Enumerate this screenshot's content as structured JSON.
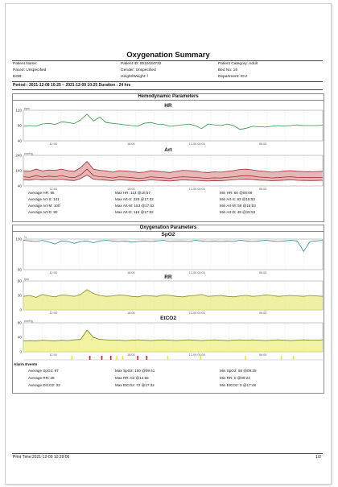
{
  "report": {
    "title": "Oxygenation Summary",
    "patient_name": "Patient Name:",
    "patient_id": "Patient ID: 0010434732",
    "patient_category": "Patient Category: Adult",
    "paced": "Paced: Unspecified",
    "gender": "Gender: Unspecified",
    "bed_no": "Bed No: 16",
    "dob": "DOB:",
    "height_weight": "Height/Weight: /",
    "department": "Department: ICU",
    "period": "Period : 2021-12-08  10:25 ~ 2021-12-09  10:25    Duration : 24 hrs"
  },
  "hemo": {
    "section_title": "Hemodynamic Parameters",
    "hr_title": "HR",
    "art_title": "Art",
    "stats": [
      [
        "Average HR: 85",
        "Max HR: 113  @16:57",
        "Min HR: 60  @00:09"
      ],
      [
        "Average Art-S: 141",
        "Max Art-S: 228  @17:02",
        "Min Art-S: 83  @15:53"
      ],
      [
        "Average Art-M: 100",
        "Max Art-M: 153  @17:02",
        "Min Art-M: 59  @15:53"
      ],
      [
        "Average Art-D: 80",
        "Max Art-D: 116  @17:02",
        "Min Art-D: 48  @15:53"
      ]
    ]
  },
  "oxy": {
    "section_title": "Oxygenation Parameters",
    "spo2_title": "SpO2",
    "rr_title": "RR",
    "etco2_title": "EtCO2",
    "alarm_label": "Alarm Events",
    "stats": [
      [
        "Average SpO2: 97",
        "Max SpO2: 100  @09:41",
        "Min SpO2: 58  @09:25"
      ],
      [
        "Average RR: 29",
        "Max RR: 53  @14:55",
        "Min RR: 0  @09:24"
      ],
      [
        "Average EtCO2: 32",
        "Max EtCO2: 72  @17:32",
        "Min EtCO2: 0  @17:48"
      ]
    ]
  },
  "footer": {
    "print_time": "Print Time:2021-12-09 10:29:06",
    "page": "1/2"
  },
  "colors": {
    "hr": "#2e9a3c",
    "art": "#9b2a2a",
    "art_fill": "#e7b7b7",
    "spo2": "#2a8a96",
    "rr": "#8a8a1a",
    "rr_fill": "#e3e35a",
    "etco2": "#6a7a12",
    "etco2_fill": "#e9e95a",
    "alarm_red": "#e02020",
    "alarm_yellow": "#f0e040"
  },
  "chart_data": [
    {
      "type": "line",
      "id": "hr",
      "title": "HR",
      "ylabel": "bpm",
      "ylim": [
        40,
        120
      ],
      "yticks": [
        "120",
        "80",
        "40"
      ],
      "xticks": [
        "12:00",
        "18:00",
        "12-09 00:00",
        "06:00"
      ],
      "series": [
        {
          "values": [
            78,
            80,
            79,
            84,
            86,
            83,
            90,
            88,
            85,
            95,
            110,
            92,
            102,
            88,
            86,
            84,
            82,
            80,
            79,
            86,
            88,
            84,
            83,
            78,
            80,
            82,
            84,
            80,
            72,
            84,
            82,
            80,
            84,
            80,
            70,
            73,
            78,
            77,
            76,
            78,
            80,
            79,
            80,
            82,
            80,
            80,
            80,
            81
          ]
        }
      ]
    },
    {
      "type": "area",
      "id": "art",
      "title": "Art",
      "ylabel": "mmHg",
      "ylim": [
        40,
        240
      ],
      "yticks": [
        "240",
        "140",
        "40"
      ],
      "xticks": [
        "12:00",
        "18:00",
        "12-09 00:00",
        "06:00"
      ],
      "series": [
        {
          "values": [
            140,
            135,
            150,
            138,
            145,
            142,
            150,
            140,
            135,
            160,
            200,
            150,
            142,
            138,
            130,
            140,
            138,
            134,
            128,
            130,
            140,
            136,
            132,
            128,
            135,
            142,
            140,
            138,
            130,
            128,
            132,
            130,
            135,
            140,
            148,
            150,
            145,
            138,
            135,
            130,
            132,
            138,
            140,
            136,
            134,
            132,
            134,
            135
          ]
        },
        {
          "values": [
            100,
            96,
            108,
            98,
            104,
            100,
            108,
            98,
            94,
            112,
            150,
            108,
            100,
            98,
            92,
            100,
            98,
            95,
            90,
            92,
            100,
            96,
            93,
            90,
            96,
            100,
            98,
            96,
            92,
            90,
            93,
            92,
            96,
            100,
            105,
            108,
            104,
            98,
            96,
            92,
            94,
            98,
            100,
            96,
            95,
            94,
            95,
            96
          ]
        },
        {
          "values": [
            80,
            78,
            84,
            79,
            82,
            80,
            84,
            78,
            75,
            88,
            112,
            84,
            80,
            78,
            74,
            80,
            78,
            76,
            72,
            74,
            80,
            77,
            75,
            72,
            76,
            80,
            78,
            77,
            74,
            72,
            75,
            74,
            77,
            80,
            84,
            86,
            83,
            78,
            77,
            74,
            76,
            78,
            80,
            77,
            76,
            75,
            76,
            77
          ]
        }
      ]
    },
    {
      "type": "line",
      "id": "spo2",
      "title": "SpO2",
      "ylabel": "%",
      "ylim": [
        50,
        100
      ],
      "yticks": [
        "100",
        "50"
      ],
      "xticks": [
        "12:00",
        "18:00",
        "12-09 00:00",
        "06:00"
      ],
      "series": [
        {
          "values": [
            98,
            97,
            96,
            98,
            95,
            92,
            97,
            96,
            93,
            96,
            97,
            94,
            97,
            98,
            97,
            96,
            97,
            95,
            96,
            97,
            96,
            97,
            98,
            96,
            97,
            97,
            96,
            98,
            97,
            96,
            97,
            96,
            97,
            96,
            98,
            97,
            96,
            97,
            98,
            97,
            96,
            97,
            98,
            97,
            80,
            96,
            97,
            98
          ]
        }
      ]
    },
    {
      "type": "line",
      "id": "rr",
      "title": "RR",
      "ylabel": "rpm",
      "ylim": [
        0,
        60
      ],
      "yticks": [
        "60",
        "30",
        "0"
      ],
      "xticks": [
        "12:00",
        "18:00",
        "12-09 00:00",
        "06:00"
      ],
      "series": [
        {
          "values": [
            28,
            30,
            26,
            32,
            29,
            27,
            31,
            30,
            28,
            32,
            42,
            34,
            30,
            28,
            29,
            31,
            30,
            28,
            27,
            30,
            29,
            28,
            31,
            30,
            28,
            27,
            29,
            30,
            32,
            28,
            29,
            30,
            28,
            27,
            29,
            30,
            28,
            29,
            31,
            30,
            28,
            29,
            30,
            29,
            28,
            30,
            29,
            28
          ]
        }
      ]
    },
    {
      "type": "line",
      "id": "etco2",
      "title": "EtCO2",
      "ylabel": "mmHg",
      "ylim": [
        0,
        80
      ],
      "yticks": [
        "80",
        "40",
        "0"
      ],
      "xticks": [
        "12:00",
        "18:00",
        "12-09 00:00",
        "06:00"
      ],
      "series": [
        {
          "values": [
            30,
            31,
            30,
            32,
            31,
            30,
            32,
            31,
            33,
            34,
            60,
            40,
            34,
            33,
            32,
            32,
            31,
            32,
            33,
            32,
            31,
            32,
            33,
            32,
            31,
            32,
            33,
            32,
            31,
            32,
            33,
            32,
            31,
            32,
            33,
            32,
            33,
            32,
            31,
            32,
            33,
            32,
            31,
            32,
            33,
            32,
            32,
            33
          ]
        }
      ]
    }
  ]
}
